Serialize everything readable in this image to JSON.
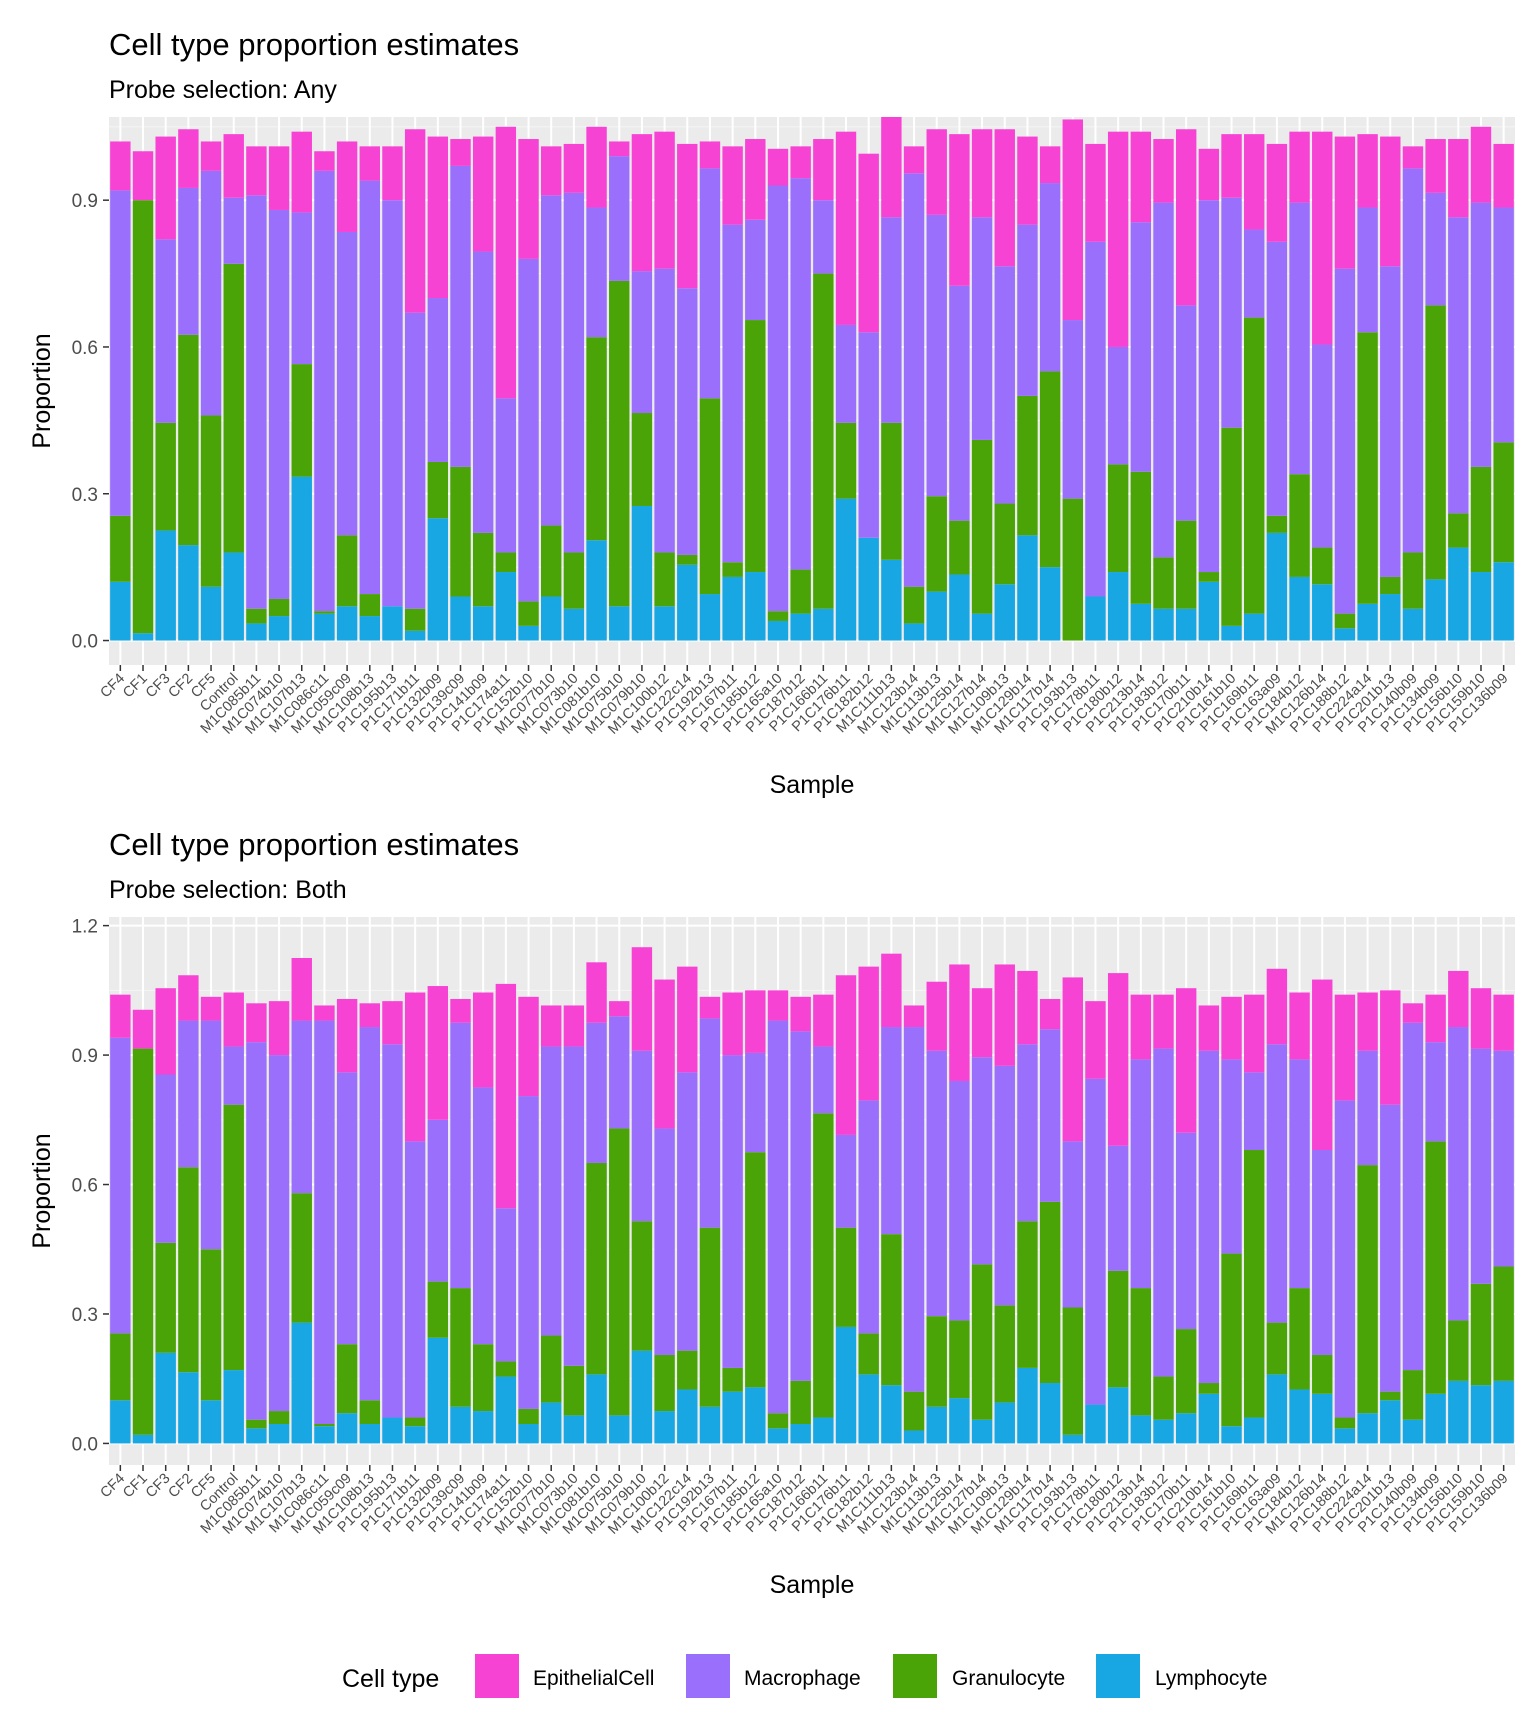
{
  "legend": {
    "title": "Cell type",
    "items": [
      {
        "label": "EpithelialCell",
        "color": "#F743D3"
      },
      {
        "label": "Macrophage",
        "color": "#9A6FFB"
      },
      {
        "label": "Granulocyte",
        "color": "#4BA407"
      },
      {
        "label": "Lymphocyte",
        "color": "#19A7E4"
      }
    ]
  },
  "chart_data": [
    {
      "type": "bar",
      "stacked": true,
      "title": "Cell type proportion estimates",
      "subtitle": "Probe selection: Any",
      "xlabel": "Sample",
      "ylabel": "Proportion",
      "ylim": [
        -0.05,
        1.07
      ],
      "yticks": [
        0.0,
        0.3,
        0.6,
        0.9
      ],
      "grid": true,
      "categories": [
        "CF4",
        "CF1",
        "CF3",
        "CF2",
        "CF5",
        "Control",
        "M1C085b11",
        "M1C074b10",
        "M1C107b13",
        "M1C086c11",
        "M1C059c09",
        "M1C108b13",
        "P1C195b13",
        "P1C171b11",
        "P1C132b09",
        "P1C139c09",
        "P1C141b09",
        "P1C174a11",
        "P1C152b10",
        "M1C077b10",
        "M1C073b10",
        "M1C081b10",
        "M1C075b10",
        "M1C079b10",
        "M1C100b12",
        "M1C122c14",
        "P1C192b13",
        "P1C167b11",
        "P1C185b12",
        "P1C165a10",
        "P1C187b12",
        "P1C166b11",
        "P1C176b11",
        "P1C182b12",
        "M1C111b13",
        "M1C123b14",
        "M1C113b13",
        "M1C125b14",
        "M1C127b14",
        "M1C109b13",
        "M1C129b14",
        "M1C117b14",
        "P1C193b13",
        "P1C178b11",
        "P1C180b12",
        "P1C213b14",
        "P1C183b12",
        "P1C170b11",
        "P1C210b14",
        "P1C161b10",
        "P1C169b11",
        "P1C163a09",
        "P1C184b12",
        "M1C126b14",
        "P1C188b12",
        "P1C224a14",
        "P1C201b13",
        "P1C140b09",
        "P1C134b09",
        "P1C156b10",
        "P1C159b10",
        "P1C136b09"
      ],
      "series": [
        {
          "name": "Lymphocyte",
          "values": [
            0.12,
            0.015,
            0.225,
            0.195,
            0.11,
            0.18,
            0.035,
            0.05,
            0.335,
            0.055,
            0.07,
            0.05,
            0.07,
            0.02,
            0.25,
            0.09,
            0.07,
            0.14,
            0.03,
            0.09,
            0.065,
            0.205,
            0.07,
            0.275,
            0.07,
            0.155,
            0.095,
            0.13,
            0.14,
            0.04,
            0.055,
            0.065,
            0.29,
            0.21,
            0.165,
            0.035,
            0.1,
            0.135,
            0.055,
            0.115,
            0.215,
            0.15,
            0.0,
            0.09,
            0.14,
            0.075,
            0.065,
            0.065,
            0.12,
            0.03,
            0.055,
            0.22,
            0.13,
            0.115,
            0.025,
            0.075,
            0.095,
            0.065,
            0.125,
            0.19,
            0.14,
            0.16
          ]
        },
        {
          "name": "Granulocyte",
          "values": [
            0.135,
            0.885,
            0.22,
            0.43,
            0.35,
            0.59,
            0.03,
            0.035,
            0.23,
            0.005,
            0.145,
            0.045,
            0.0,
            0.045,
            0.115,
            0.265,
            0.15,
            0.04,
            0.05,
            0.145,
            0.115,
            0.415,
            0.665,
            0.19,
            0.11,
            0.02,
            0.4,
            0.03,
            0.515,
            0.02,
            0.09,
            0.685,
            0.155,
            0.0,
            0.28,
            0.075,
            0.195,
            0.11,
            0.355,
            0.165,
            0.285,
            0.4,
            0.29,
            0.0,
            0.22,
            0.27,
            0.105,
            0.18,
            0.02,
            0.405,
            0.605,
            0.035,
            0.21,
            0.075,
            0.03,
            0.555,
            0.035,
            0.115,
            0.56,
            0.07,
            0.215,
            0.245
          ]
        },
        {
          "name": "Macrophage",
          "values": [
            0.665,
            0.0,
            0.375,
            0.3,
            0.5,
            0.135,
            0.845,
            0.795,
            0.31,
            0.9,
            0.62,
            0.845,
            0.83,
            0.605,
            0.335,
            0.615,
            0.575,
            0.315,
            0.7,
            0.675,
            0.735,
            0.265,
            0.255,
            0.29,
            0.58,
            0.545,
            0.47,
            0.69,
            0.205,
            0.87,
            0.8,
            0.15,
            0.2,
            0.42,
            0.42,
            0.845,
            0.575,
            0.48,
            0.455,
            0.485,
            0.35,
            0.385,
            0.365,
            0.725,
            0.24,
            0.51,
            0.725,
            0.44,
            0.76,
            0.47,
            0.18,
            0.56,
            0.555,
            0.415,
            0.705,
            0.255,
            0.635,
            0.785,
            0.23,
            0.605,
            0.54,
            0.48
          ]
        },
        {
          "name": "EpithelialCell",
          "values": [
            0.1,
            0.1,
            0.21,
            0.12,
            0.06,
            0.13,
            0.1,
            0.13,
            0.165,
            0.04,
            0.185,
            0.07,
            0.11,
            0.375,
            0.33,
            0.055,
            0.235,
            0.555,
            0.245,
            0.1,
            0.1,
            0.165,
            0.03,
            0.28,
            0.28,
            0.295,
            0.055,
            0.16,
            0.165,
            0.075,
            0.065,
            0.125,
            0.395,
            0.365,
            0.205,
            0.055,
            0.175,
            0.31,
            0.18,
            0.28,
            0.18,
            0.075,
            0.41,
            0.2,
            0.44,
            0.185,
            0.13,
            0.36,
            0.105,
            0.13,
            0.195,
            0.2,
            0.145,
            0.435,
            0.27,
            0.15,
            0.265,
            0.045,
            0.11,
            0.16,
            0.155,
            0.13
          ]
        }
      ]
    },
    {
      "type": "bar",
      "stacked": true,
      "title": "Cell type proportion estimates",
      "subtitle": "Probe selection: Both",
      "xlabel": "Sample",
      "ylabel": "Proportion",
      "ylim": [
        -0.05,
        1.22
      ],
      "yticks": [
        0.0,
        0.3,
        0.6,
        0.9,
        1.2
      ],
      "grid": true,
      "categories": [
        "CF4",
        "CF1",
        "CF3",
        "CF2",
        "CF5",
        "Control",
        "M1C085b11",
        "M1C074b10",
        "M1C107b13",
        "M1C086c11",
        "M1C059c09",
        "M1C108b13",
        "P1C195b13",
        "P1C171b11",
        "P1C132b09",
        "P1C139c09",
        "P1C141b09",
        "P1C174a11",
        "P1C152b10",
        "M1C077b10",
        "M1C073b10",
        "M1C081b10",
        "M1C075b10",
        "M1C079b10",
        "M1C100b12",
        "M1C122c14",
        "P1C192b13",
        "P1C167b11",
        "P1C185b12",
        "P1C165a10",
        "P1C187b12",
        "P1C166b11",
        "P1C176b11",
        "P1C182b12",
        "M1C111b13",
        "M1C123b14",
        "M1C113b13",
        "M1C125b14",
        "M1C127b14",
        "M1C109b13",
        "M1C129b14",
        "M1C117b14",
        "P1C193b13",
        "P1C178b11",
        "P1C180b12",
        "P1C213b14",
        "P1C183b12",
        "P1C170b11",
        "P1C210b14",
        "P1C161b10",
        "P1C169b11",
        "P1C163a09",
        "P1C184b12",
        "M1C126b14",
        "P1C188b12",
        "P1C224a14",
        "P1C201b13",
        "P1C140b09",
        "P1C134b09",
        "P1C156b10",
        "P1C159b10",
        "P1C136b09"
      ],
      "series": [
        {
          "name": "Lymphocyte",
          "values": [
            0.1,
            0.02,
            0.21,
            0.165,
            0.1,
            0.17,
            0.035,
            0.045,
            0.28,
            0.04,
            0.07,
            0.045,
            0.06,
            0.04,
            0.245,
            0.085,
            0.075,
            0.155,
            0.045,
            0.095,
            0.065,
            0.16,
            0.065,
            0.215,
            0.075,
            0.125,
            0.085,
            0.12,
            0.13,
            0.035,
            0.045,
            0.06,
            0.27,
            0.16,
            0.135,
            0.03,
            0.085,
            0.105,
            0.055,
            0.095,
            0.175,
            0.14,
            0.02,
            0.09,
            0.13,
            0.065,
            0.055,
            0.07,
            0.115,
            0.04,
            0.06,
            0.16,
            0.125,
            0.115,
            0.035,
            0.07,
            0.1,
            0.055,
            0.115,
            0.145,
            0.135,
            0.145
          ]
        },
        {
          "name": "Granulocyte",
          "values": [
            0.155,
            0.895,
            0.255,
            0.475,
            0.35,
            0.615,
            0.02,
            0.03,
            0.3,
            0.005,
            0.16,
            0.055,
            0.0,
            0.02,
            0.13,
            0.275,
            0.155,
            0.035,
            0.035,
            0.155,
            0.115,
            0.49,
            0.665,
            0.3,
            0.13,
            0.09,
            0.415,
            0.055,
            0.545,
            0.035,
            0.1,
            0.705,
            0.23,
            0.095,
            0.35,
            0.09,
            0.21,
            0.18,
            0.36,
            0.225,
            0.34,
            0.42,
            0.295,
            0.0,
            0.27,
            0.295,
            0.1,
            0.195,
            0.025,
            0.4,
            0.62,
            0.12,
            0.235,
            0.09,
            0.025,
            0.575,
            0.02,
            0.115,
            0.585,
            0.14,
            0.235,
            0.265
          ]
        },
        {
          "name": "Macrophage",
          "values": [
            0.685,
            0.0,
            0.39,
            0.34,
            0.53,
            0.135,
            0.875,
            0.825,
            0.4,
            0.935,
            0.63,
            0.865,
            0.865,
            0.64,
            0.375,
            0.615,
            0.595,
            0.355,
            0.725,
            0.67,
            0.74,
            0.325,
            0.26,
            0.395,
            0.525,
            0.645,
            0.485,
            0.725,
            0.23,
            0.91,
            0.81,
            0.155,
            0.215,
            0.54,
            0.48,
            0.845,
            0.615,
            0.555,
            0.48,
            0.555,
            0.41,
            0.4,
            0.385,
            0.755,
            0.29,
            0.53,
            0.76,
            0.455,
            0.77,
            0.45,
            0.18,
            0.645,
            0.53,
            0.475,
            0.735,
            0.265,
            0.665,
            0.805,
            0.23,
            0.68,
            0.545,
            0.5
          ]
        },
        {
          "name": "EpithelialCell",
          "values": [
            0.1,
            0.09,
            0.2,
            0.105,
            0.055,
            0.125,
            0.09,
            0.125,
            0.145,
            0.035,
            0.17,
            0.055,
            0.1,
            0.345,
            0.31,
            0.055,
            0.22,
            0.52,
            0.23,
            0.095,
            0.095,
            0.14,
            0.035,
            0.24,
            0.345,
            0.245,
            0.05,
            0.145,
            0.145,
            0.07,
            0.08,
            0.12,
            0.37,
            0.31,
            0.17,
            0.05,
            0.16,
            0.27,
            0.16,
            0.235,
            0.17,
            0.07,
            0.38,
            0.18,
            0.4,
            0.15,
            0.125,
            0.335,
            0.105,
            0.145,
            0.18,
            0.175,
            0.155,
            0.395,
            0.245,
            0.135,
            0.265,
            0.045,
            0.11,
            0.13,
            0.14,
            0.13
          ]
        }
      ]
    }
  ]
}
